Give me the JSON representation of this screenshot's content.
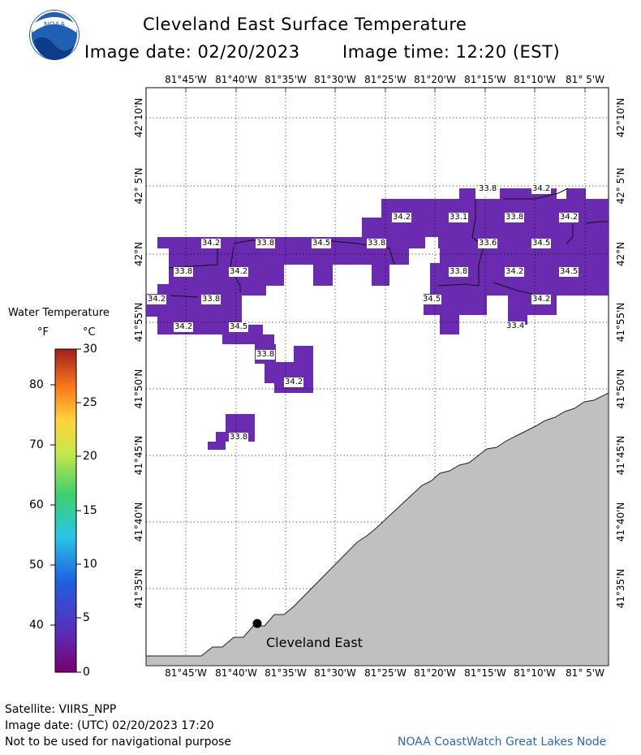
{
  "header": {
    "title": "Cleveland East Surface Temperature",
    "image_date": "Image date: 02/20/2023",
    "image_time": "Image time: 12:20 (EST)",
    "logo_text": "NOAA"
  },
  "axes": {
    "lon_labels": [
      "81°45'W",
      "81°40'W",
      "81°35'W",
      "81°30'W",
      "81°25'W",
      "81°20'W",
      "81°15'W",
      "81°10'W",
      "81° 5'W"
    ],
    "lat_labels": [
      "42°10'N",
      "42° 5'N",
      "42°N",
      "41°55'N",
      "41°50'N",
      "41°45'N",
      "41°40'N",
      "41°35'N"
    ]
  },
  "legend": {
    "title": "Water Temperature",
    "unit_f": "°F",
    "unit_c": "°C",
    "f_ticks": [
      "80",
      "70",
      "60",
      "50",
      "40"
    ],
    "c_ticks": [
      "30",
      "25",
      "20",
      "15",
      "10",
      "5",
      "0"
    ]
  },
  "map": {
    "land_color": "#c0c0c0",
    "water_data_color": "#6a2bb0",
    "station_label": "Cleveland East",
    "temperature_labels": [
      "33.8",
      "34.2",
      "33.1",
      "33.8",
      "34.2",
      "34.2",
      "34.2",
      "33.8",
      "34.5",
      "33.8",
      "33.6",
      "34.5",
      "33.8",
      "34.2",
      "33.8",
      "34.2",
      "34.5",
      "34.2",
      "33.8",
      "34.5",
      "34.2",
      "34.2",
      "34.5",
      "33.4",
      "33.8",
      "34.2",
      "33.8"
    ]
  },
  "footer": {
    "satellite": "Satellite: VIIRS_NPP",
    "image_date_utc": "Image date: (UTC) 02/20/2023  17:20",
    "disclaimer": "Not to be used for navigational purpose",
    "credit": "NOAA CoastWatch Great Lakes Node"
  }
}
